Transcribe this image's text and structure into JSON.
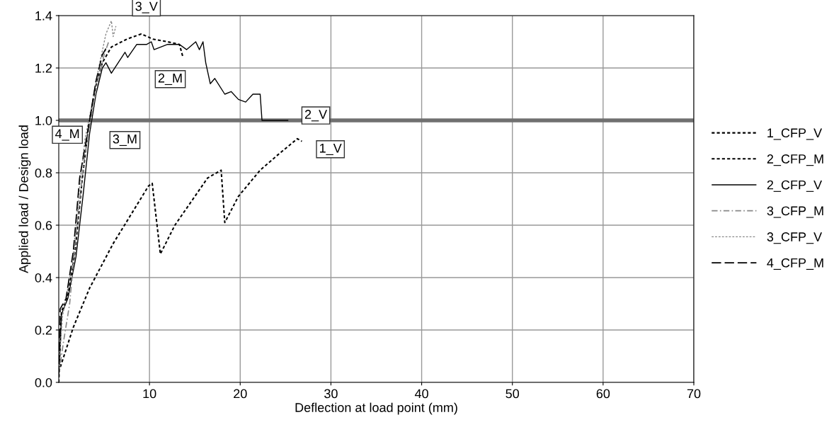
{
  "chart_data": {
    "type": "line",
    "xlabel": "Deflection at load point (mm)",
    "ylabel": "Applied load / Design load",
    "xlim": [
      0,
      70
    ],
    "xticks": [
      10,
      20,
      30,
      40,
      50,
      60,
      70
    ],
    "ylim": [
      0,
      1.4
    ],
    "yticks": [
      {
        "value": 0,
        "label": "0.0"
      },
      {
        "value": 0.2,
        "label": "0.2"
      },
      {
        "value": 0.4,
        "label": "0.4"
      },
      {
        "value": 0.6,
        "label": "0.6"
      },
      {
        "value": 0.8,
        "label": "0.8"
      },
      {
        "value": 1.0,
        "label": "1.0"
      },
      {
        "value": 1.2,
        "label": "1.2"
      },
      {
        "value": 1.4,
        "label": "1.4"
      }
    ],
    "grid": true,
    "legend": "right",
    "ref_lines": [
      {
        "axis": "y",
        "value": 1.0,
        "color": "#707070",
        "line_style": "solid"
      }
    ],
    "series": [
      {
        "name": "1_CFP_V",
        "color": "#000000",
        "line_style": "dashed",
        "x": [
          0,
          1.6,
          3.4,
          6.0,
          7.6,
          9.9,
          10.3,
          11.2,
          12.8,
          16.4,
          17.9,
          18.3,
          19.8,
          22.2,
          24.2,
          26.3,
          26.8
        ],
        "values": [
          0.04,
          0.21,
          0.36,
          0.53,
          0.62,
          0.75,
          0.76,
          0.49,
          0.6,
          0.78,
          0.81,
          0.61,
          0.71,
          0.81,
          0.87,
          0.93,
          0.92
        ]
      },
      {
        "name": "2_CFP_M",
        "color": "#000000",
        "line_style": "dashed",
        "x": [
          0,
          0.3,
          1.0,
          1.8,
          2.6,
          3.3,
          4.0,
          4.8,
          5.8,
          7.5,
          9.1,
          10.4,
          12.0,
          13.3,
          13.7
        ],
        "values": [
          0.0,
          0.27,
          0.33,
          0.5,
          0.78,
          0.98,
          1.12,
          1.22,
          1.28,
          1.31,
          1.33,
          1.31,
          1.3,
          1.29,
          1.24
        ]
      },
      {
        "name": "2_CFP_V",
        "color": "#000000",
        "line_style": "solid",
        "x": [
          0,
          0.3,
          1.0,
          1.9,
          2.7,
          3.4,
          4.1,
          4.8,
          5.2,
          5.8,
          7.3,
          7.6,
          8.6,
          9.7,
          10.2,
          10.5,
          12.0,
          13.3,
          14.1,
          15.1,
          15.5,
          15.9,
          16.2,
          16.7,
          17.2,
          18.3,
          19.0,
          19.8,
          20.6,
          21.4,
          22.2,
          22.4,
          25.3
        ],
        "values": [
          0.02,
          0.26,
          0.32,
          0.48,
          0.72,
          0.95,
          1.1,
          1.2,
          1.22,
          1.18,
          1.26,
          1.24,
          1.29,
          1.29,
          1.3,
          1.27,
          1.29,
          1.29,
          1.27,
          1.3,
          1.27,
          1.3,
          1.22,
          1.14,
          1.16,
          1.1,
          1.11,
          1.08,
          1.07,
          1.1,
          1.1,
          1.0,
          1.0
        ]
      },
      {
        "name": "3_CFP_M",
        "color": "#888888",
        "line_style": "dashdot",
        "x": [
          0,
          0.5,
          1.2,
          2.0,
          2.8,
          3.5,
          4.3,
          5.0,
          5.5
        ],
        "values": [
          0.03,
          0.15,
          0.3,
          0.6,
          0.85,
          1.0,
          1.15,
          1.25,
          1.3
        ]
      },
      {
        "name": "3_CFP_V",
        "color": "#888888",
        "line_style": "dotted",
        "x": [
          0,
          0.4,
          1.5,
          2.3,
          2.9,
          3.6,
          4.4,
          5.2,
          5.8,
          6.0,
          6.3
        ],
        "values": [
          0.05,
          0.25,
          0.45,
          0.75,
          0.93,
          1.05,
          1.2,
          1.33,
          1.38,
          1.32,
          1.36
        ]
      },
      {
        "name": "4_CFP_M",
        "color": "#000000",
        "line_style": "longdash",
        "x": [
          0,
          0.15,
          0.8,
          1.6,
          2.3,
          2.9,
          3.4,
          4.1,
          4.8,
          5.3
        ],
        "values": [
          0.02,
          0.28,
          0.32,
          0.5,
          0.78,
          0.9,
          1.0,
          1.15,
          1.25,
          1.28
        ]
      }
    ],
    "annotations": [
      {
        "text": "3_V",
        "x": 6.3,
        "y": 1.36
      },
      {
        "text": "2_M",
        "x": 13.7,
        "y": 1.24
      },
      {
        "text": "2_V",
        "x": 25.3,
        "y": 1.0
      },
      {
        "text": "1_V",
        "x": 26.8,
        "y": 0.92
      },
      {
        "text": "4_M",
        "x": 2.9,
        "y": 0.9
      },
      {
        "text": "3_M",
        "x": 3.5,
        "y": 1.0
      }
    ]
  }
}
